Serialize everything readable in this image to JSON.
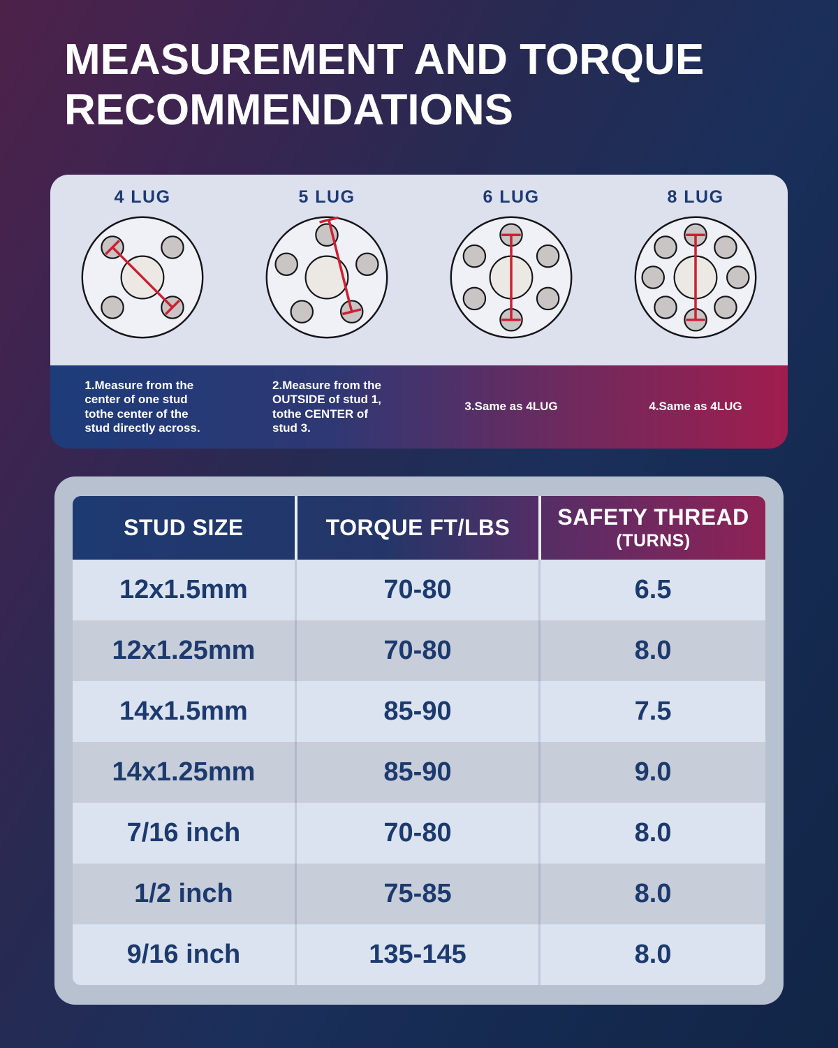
{
  "title": {
    "line1": "MEASUREMENT AND TORQUE",
    "line2": "RECOMMENDATIONS"
  },
  "lug_panel": {
    "items": [
      {
        "label": "4 LUG",
        "studs": 4,
        "diagram_icon": "lug-diagram-4-lug",
        "caption": "1.Measure from the\ncenter of one stud\ntothe center of the\nstud directly across."
      },
      {
        "label": "5 LUG",
        "studs": 5,
        "diagram_icon": "lug-diagram-5-lug",
        "caption": "2.Measure from the\nOUTSIDE of stud 1,\ntothe CENTER of\nstud 3."
      },
      {
        "label": "6 LUG",
        "studs": 6,
        "diagram_icon": "lug-diagram-6-lug",
        "caption": "3.Same as 4LUG"
      },
      {
        "label": "8 LUG",
        "studs": 8,
        "diagram_icon": "lug-diagram-8-lug",
        "caption": "4.Same as 4LUG"
      }
    ]
  },
  "table": {
    "headers": [
      {
        "line1": "STUD SIZE"
      },
      {
        "line1": "TORQUE FT/LBS"
      },
      {
        "line1": "SAFETY THREAD",
        "line2": "(TURNS)"
      }
    ],
    "rows": [
      [
        "12x1.5mm",
        "70-80",
        "6.5"
      ],
      [
        "12x1.25mm",
        "70-80",
        "8.0"
      ],
      [
        "14x1.5mm",
        "85-90",
        "7.5"
      ],
      [
        "14x1.25mm",
        "85-90",
        "9.0"
      ],
      [
        "7/16 inch",
        "70-80",
        "8.0"
      ],
      [
        "1/2 inch",
        "75-85",
        "8.0"
      ],
      [
        "9/16 inch",
        "135-145",
        "8.0"
      ]
    ]
  },
  "colors": {
    "background_plum": "#4d2249",
    "background_navy": "#14294e",
    "panel_bg": "#dce1ed",
    "band_navy": "#1d3c7a",
    "band_crimson": "#a01d4e",
    "header_navy": "#1e3a72",
    "header_maroon": "#8e2256",
    "card_silver": "#b8c1d0",
    "row_light": "#dbe3f0",
    "row_dark": "#c7cdd9",
    "cell_text": "#1c3a6e",
    "lug_label": "#1d3a75",
    "title_text": "#ffffff",
    "wheel_fill": "#eff1f7",
    "hub_fill": "#ece9e4",
    "stud_fill": "#c8c5c4",
    "outline": "#15151a",
    "measure_line_red": "#cc2133"
  }
}
